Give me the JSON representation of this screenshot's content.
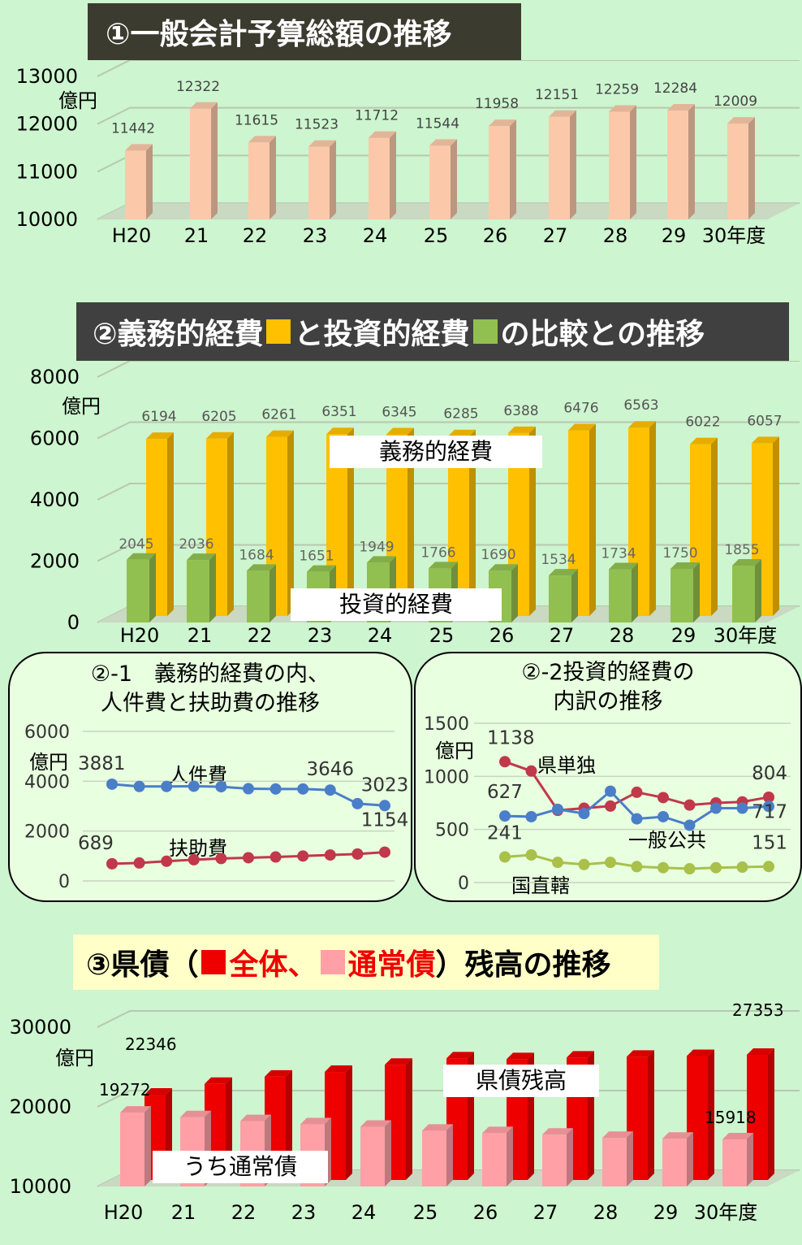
{
  "chart1": {
    "title": "①一般会計予算総額の推移",
    "unit": "億円",
    "chart_data": {
      "type": "bar",
      "categories": [
        "H20",
        "21",
        "22",
        "23",
        "24",
        "25",
        "26",
        "27",
        "28",
        "29",
        "30年度"
      ],
      "values": [
        11442,
        12322,
        11615,
        11523,
        11712,
        11544,
        11958,
        12151,
        12259,
        12284,
        12009
      ],
      "ylim": [
        10000,
        13000
      ],
      "yticks": [
        "10000",
        "11000",
        "12000",
        "13000"
      ],
      "ylabel": "億円",
      "color": "#fbc9aa",
      "grid": true
    }
  },
  "chart2": {
    "title_part1": "②義務的経費",
    "title_part2": "と投資的経費",
    "title_part3": "の比較との推移",
    "color_gimu": "#ffc000",
    "color_toushi": "#92c050",
    "unit": "億円",
    "label_gimu": "義務的経費",
    "label_toushi": "投資的経費",
    "chart_data": {
      "type": "bar",
      "categories": [
        "H20",
        "21",
        "22",
        "23",
        "24",
        "25",
        "26",
        "27",
        "28",
        "29",
        "30年度"
      ],
      "series": [
        {
          "name": "義務的経費",
          "values": [
            6194,
            6205,
            6261,
            6351,
            6345,
            6285,
            6388,
            6476,
            6563,
            6022,
            6057
          ]
        },
        {
          "name": "投資的経費",
          "values": [
            2045,
            2036,
            1684,
            1651,
            1949,
            1766,
            1690,
            1534,
            1734,
            1750,
            1855
          ]
        }
      ],
      "ylim": [
        0,
        8000
      ],
      "yticks": [
        "0",
        "2000",
        "4000",
        "6000",
        "8000"
      ],
      "ylabel": "億円",
      "grid": true
    }
  },
  "panel21": {
    "title": "②-1　義務的経費の内、\n人件費と扶助費の推移",
    "unit": "億円",
    "label_jinken": "人件費",
    "label_fujo": "扶助費",
    "chart_data": {
      "type": "line",
      "series": [
        {
          "name": "人件費",
          "values": [
            3881,
            3790,
            3790,
            3800,
            3780,
            3700,
            3690,
            3690,
            3646,
            3100,
            3023
          ],
          "labels": {
            "0": "3881",
            "8": "3646",
            "10": "3023"
          }
        },
        {
          "name": "扶助費",
          "values": [
            689,
            720,
            790,
            850,
            900,
            930,
            960,
            1000,
            1040,
            1080,
            1154
          ],
          "labels": {
            "0": "689",
            "10": "1154"
          }
        }
      ],
      "ylim": [
        0,
        6000
      ],
      "yticks": [
        "0",
        "2000",
        "4000",
        "6000"
      ]
    }
  },
  "panel22": {
    "title": "②-2投資的経費の\n内訳の推移",
    "unit": "億円",
    "label_kentan": "県単独",
    "label_ippan": "一般公共",
    "label_kokuchoku": "国直轄",
    "chart_data": {
      "type": "line",
      "series": [
        {
          "name": "県単独",
          "values": [
            1138,
            1050,
            680,
            700,
            720,
            850,
            800,
            730,
            750,
            760,
            804
          ],
          "labels": {
            "0": "1138",
            "10": "804"
          }
        },
        {
          "name": "一般公共",
          "values": [
            627,
            620,
            690,
            650,
            860,
            600,
            620,
            540,
            700,
            700,
            717
          ],
          "labels": {
            "0": "627",
            "10": "717"
          }
        },
        {
          "name": "国直轄",
          "values": [
            241,
            260,
            190,
            170,
            190,
            150,
            140,
            130,
            140,
            145,
            151
          ],
          "labels": {
            "0": "241",
            "10": "151"
          }
        }
      ],
      "ylim": [
        0,
        1500
      ],
      "yticks": [
        "0",
        "500",
        "1000",
        "1500"
      ]
    }
  },
  "chart3": {
    "title_part1": "③県債（",
    "title_part2": "全体、",
    "title_part3": "通常債",
    "title_part4": "）残高の推移",
    "color_zentai": "#ee0000",
    "color_tsujo": "#ffa0a6",
    "unit": "億円",
    "label_zentai": "県債残高",
    "label_tsujo": "うち通常債",
    "chart_data": {
      "type": "bar",
      "categories": [
        "H20",
        "21",
        "22",
        "23",
        "24",
        "25",
        "26",
        "27",
        "28",
        "29",
        "30年度"
      ],
      "series": [
        {
          "name": "全体",
          "values": [
            22346,
            23700,
            24600,
            25200,
            26100,
            26900,
            26800,
            27000,
            27100,
            27200,
            27353
          ],
          "labels": {
            "0": "22346",
            "10": "27353"
          }
        },
        {
          "name": "通常債",
          "values": [
            19272,
            18700,
            18200,
            17800,
            17500,
            17000,
            16700,
            16500,
            16100,
            16000,
            15918
          ],
          "labels": {
            "0": "19272",
            "10": "15918"
          }
        }
      ],
      "ylim": [
        10000,
        30000
      ],
      "yticks": [
        "10000",
        "20000",
        "30000"
      ],
      "ylabel": "億円",
      "grid": true
    }
  }
}
